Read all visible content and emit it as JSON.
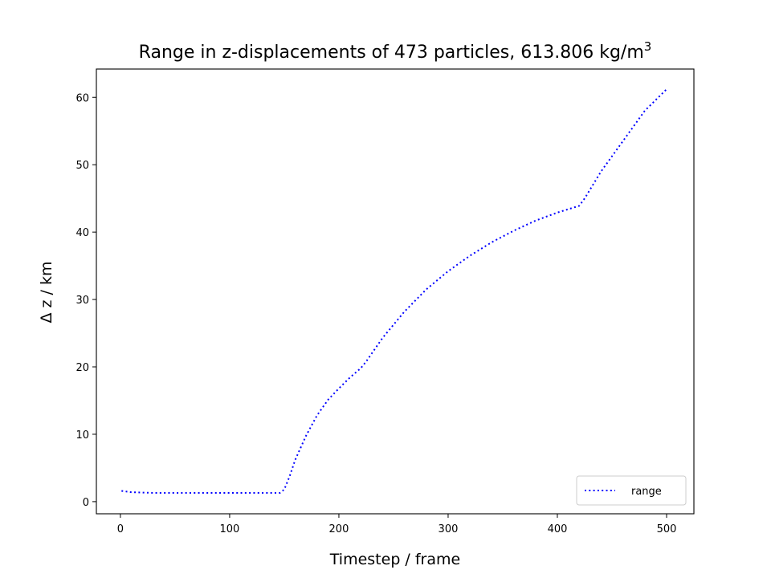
{
  "chart_data": {
    "type": "line",
    "title": "Range in z-displacements of 473 particles, 613.806 kg/m",
    "title_superscript": "3",
    "xlabel": "Timestep / frame",
    "ylabel": "Δ z / km",
    "xlim": [
      -22,
      525
    ],
    "ylim": [
      -1.8,
      64.2
    ],
    "xticks": [
      0,
      100,
      200,
      300,
      400,
      500
    ],
    "yticks": [
      0,
      10,
      20,
      30,
      40,
      50,
      60
    ],
    "grid": false,
    "legend_position": "lower right",
    "series": [
      {
        "name": "range",
        "color": "#0000ff",
        "line_style": "dotted",
        "x": [
          1,
          10,
          30,
          60,
          100,
          140,
          146,
          150,
          155,
          160,
          170,
          180,
          190,
          200,
          210,
          220,
          225,
          240,
          260,
          280,
          300,
          320,
          340,
          360,
          380,
          400,
          420,
          425,
          440,
          460,
          480,
          500
        ],
        "y": [
          1.6,
          1.4,
          1.3,
          1.3,
          1.3,
          1.3,
          1.3,
          1.8,
          3.8,
          6.2,
          9.8,
          12.8,
          15.1,
          16.8,
          18.4,
          19.8,
          20.8,
          24.3,
          28.2,
          31.5,
          34.2,
          36.5,
          38.5,
          40.2,
          41.7,
          42.9,
          43.9,
          45.0,
          49.0,
          53.5,
          58.0,
          61.2
        ]
      }
    ]
  }
}
